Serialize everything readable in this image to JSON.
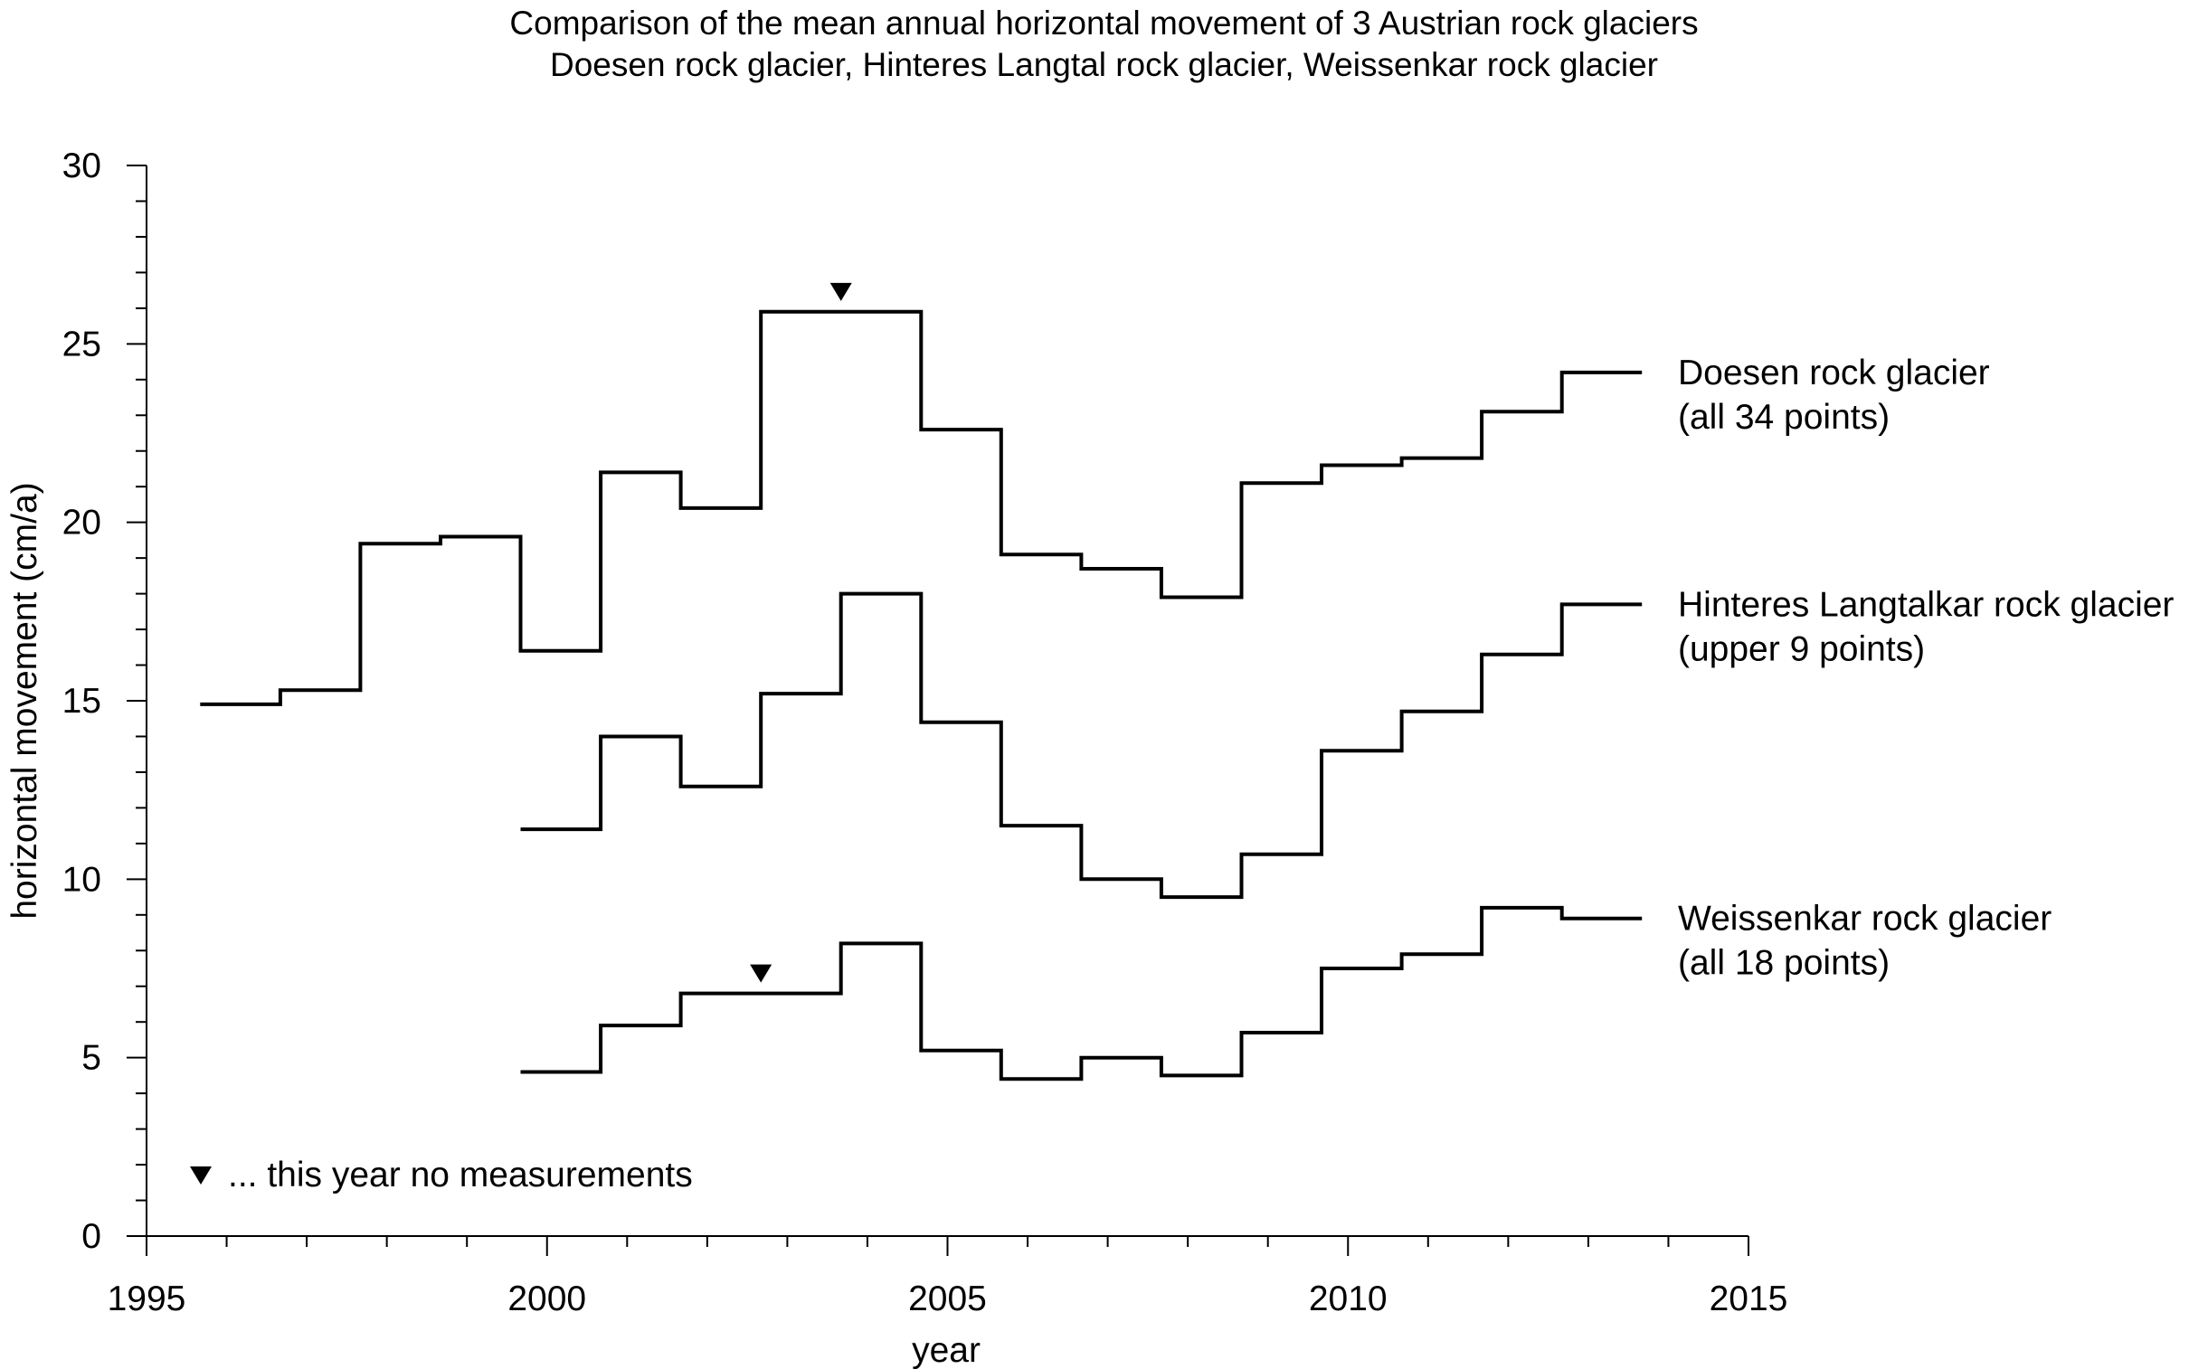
{
  "chart_data": {
    "type": "line",
    "step": true,
    "title": "Comparison of the mean annual horizontal movement of 3 Austrian rock glaciers",
    "subtitle": "Doesen rock glacier, Hinteres Langtal rock glacier, Weissenkar rock glacier",
    "xlabel": "year",
    "ylabel": "horizontal movement (cm/a)",
    "xlim": [
      1995,
      2015
    ],
    "ylim": [
      0,
      30
    ],
    "x_ticks": [
      1995,
      2000,
      2005,
      2010,
      2015
    ],
    "y_ticks": [
      0,
      5,
      10,
      15,
      20,
      25,
      30
    ],
    "grid": false,
    "series": [
      {
        "name": "Doesen rock glacier",
        "name_line2": "(all 34 points)",
        "x_start": [
          1995.67,
          1996.67,
          1997.67,
          1998.67,
          1999.67,
          2000.67,
          2001.67,
          2002.67,
          2003.67,
          2004.67,
          2005.67,
          2006.67,
          2007.67,
          2008.67,
          2009.67,
          2010.67,
          2011.67,
          2012.67
        ],
        "x_end": 2013.67,
        "values": [
          14.9,
          15.3,
          19.4,
          19.6,
          16.4,
          21.4,
          20.4,
          25.9,
          25.9,
          22.6,
          19.1,
          18.7,
          17.9,
          21.1,
          21.6,
          21.8,
          23.1,
          24.2
        ],
        "no_measurement_years": [
          2003.67
        ]
      },
      {
        "name": "Hinteres Langtalkar rock glacier",
        "name_line2": "(upper 9 points)",
        "x_start": [
          1999.67,
          2000.67,
          2001.67,
          2002.67,
          2003.67,
          2004.67,
          2005.67,
          2006.67,
          2007.67,
          2008.67,
          2009.67,
          2010.67,
          2011.67,
          2012.67
        ],
        "x_end": 2013.67,
        "values": [
          11.4,
          14.0,
          12.6,
          15.2,
          18.0,
          14.4,
          11.5,
          10.0,
          9.5,
          10.7,
          13.6,
          14.7,
          16.3,
          17.7
        ],
        "no_measurement_years": []
      },
      {
        "name": "Weissenkar rock glacier",
        "name_line2": "(all 18 points)",
        "x_start": [
          1999.67,
          2000.67,
          2001.67,
          2002.67,
          2003.67,
          2004.67,
          2005.67,
          2006.67,
          2007.67,
          2008.67,
          2009.67,
          2010.67,
          2011.67,
          2012.67
        ],
        "x_end": 2013.67,
        "values": [
          4.6,
          5.9,
          6.8,
          6.8,
          8.2,
          5.2,
          4.4,
          5.0,
          4.5,
          5.7,
          7.5,
          7.9,
          9.2,
          8.9
        ],
        "no_measurement_years": [
          2002.67
        ]
      }
    ],
    "legend_note": "... this year no measurements",
    "legend_note_position": "bottom-left"
  }
}
